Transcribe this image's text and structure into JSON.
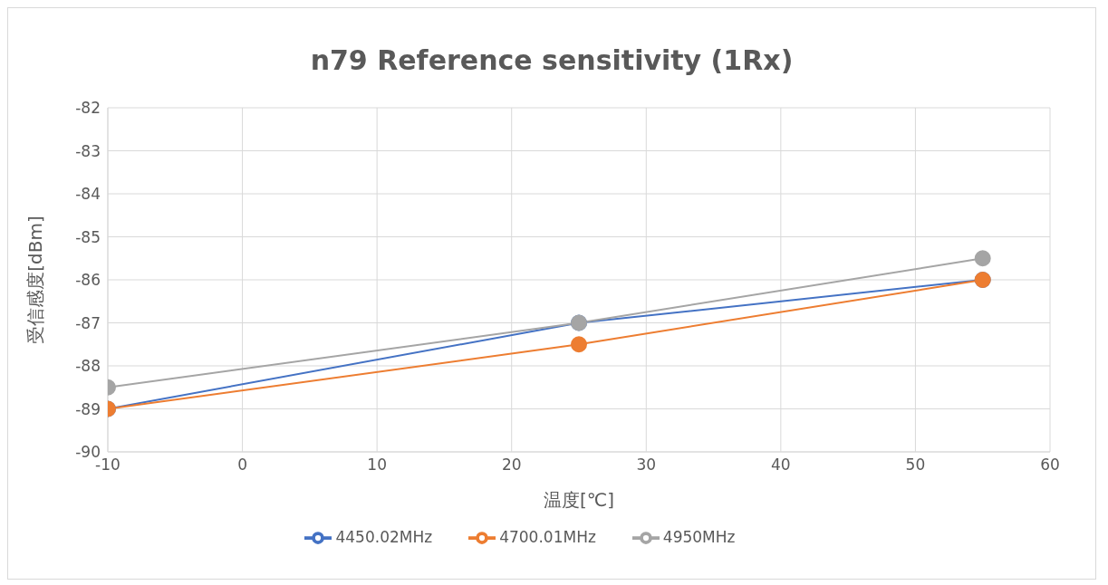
{
  "chart_data": {
    "type": "line",
    "title": "n79 Reference sensitivity (1Rx)",
    "xlabel": "温度[℃]",
    "ylabel": "受信感度[dBm]",
    "x": [
      -10,
      25,
      55
    ],
    "series": [
      {
        "name": "4450.02MHz",
        "color": "#4472c4",
        "values": [
          -89,
          -87,
          -86
        ]
      },
      {
        "name": "4700.01MHz",
        "color": "#ed7d31",
        "values": [
          -89,
          -87.5,
          -86
        ]
      },
      {
        "name": "4950MHz",
        "color": "#a5a5a5",
        "values": [
          -88.5,
          -87,
          -85.5
        ]
      }
    ],
    "xlim": [
      -10,
      60
    ],
    "xticks": [
      -10,
      0,
      10,
      20,
      30,
      40,
      50,
      60
    ],
    "ylim": [
      -90,
      -82
    ],
    "yticks": [
      -90,
      -89,
      -88,
      -87,
      -86,
      -85,
      -84,
      -83,
      -82
    ],
    "grid": true,
    "legend": "bottom",
    "marker": "circle",
    "line_style": "solid"
  }
}
